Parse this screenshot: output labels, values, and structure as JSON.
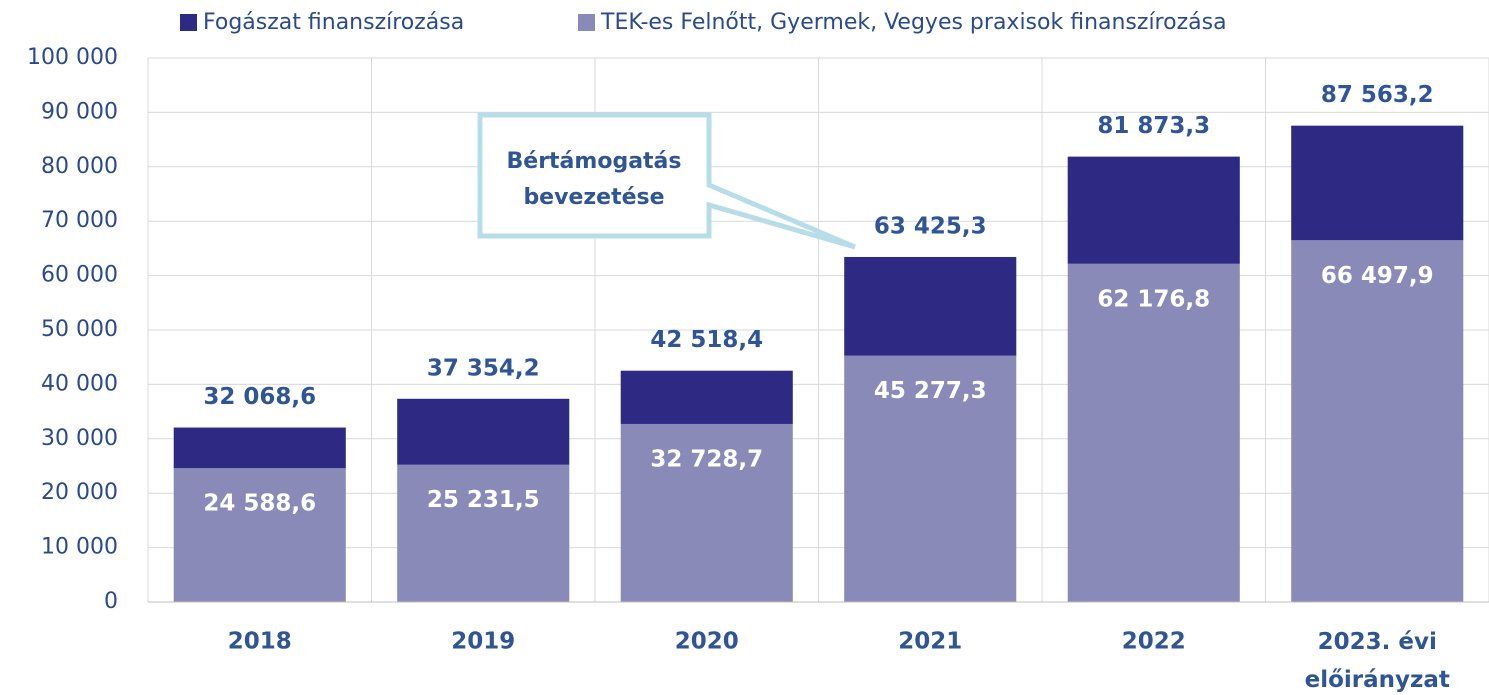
{
  "chart_data": {
    "type": "stacked_bar",
    "categories": [
      "2018",
      "2019",
      "2020",
      "2021",
      "2022",
      "2023. évi előirányzat"
    ],
    "series": [
      {
        "name": "TEK-es Felnőtt, Gyermek, Vegyes praxisok finanszírozása",
        "color": "#8a8ab9",
        "values": [
          24588.6,
          25231.5,
          32728.7,
          45277.3,
          62176.8,
          66497.9
        ],
        "value_labels": [
          "24 588,6",
          "25 231,5",
          "32 728,7",
          "45 277,3",
          "62 176,8",
          "66 497,9"
        ]
      },
      {
        "name": "Fogászat finanszírozása",
        "color": "#2e2a84",
        "values": [
          7480.0,
          12122.7,
          9789.7,
          18148.0,
          19696.5,
          21065.3
        ]
      }
    ],
    "totals": [
      32068.6,
      37354.2,
      42518.4,
      63425.3,
      81873.3,
      87563.2
    ],
    "total_labels": [
      "32 068,6",
      "37 354,2",
      "42 518,4",
      "63 425,3",
      "81 873,3",
      "87 563,2"
    ],
    "annotation": "Bértámogatás bevezetése",
    "ylim": [
      0,
      100000
    ],
    "yticks": [
      0,
      {
        "value": 10000,
        "label": "10 000"
      },
      {
        "value": 20000,
        "label": "20 000"
      },
      {
        "value": 30000,
        "label": "30 000"
      },
      {
        "value": 40000,
        "label": "40 000"
      },
      {
        "value": 50000,
        "label": "50 000"
      },
      {
        "value": 60000,
        "label": "60 000"
      },
      {
        "value": 70000,
        "label": "70 000"
      },
      {
        "value": 80000,
        "label": "80 000"
      },
      {
        "value": 90000,
        "label": "90 000"
      },
      {
        "value": 100000,
        "label": "100 000"
      }
    ],
    "grid": true
  }
}
